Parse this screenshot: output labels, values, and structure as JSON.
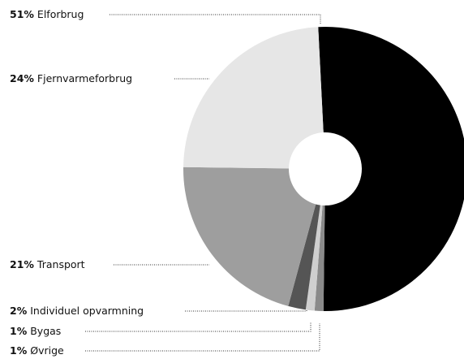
{
  "chart_data": {
    "type": "pie",
    "categories": [
      "Elforbrug",
      "Øvrige",
      "Bygas",
      "Individuel opvarmning",
      "Transport",
      "Fjernvarmeforbrug"
    ],
    "values": [
      51,
      1,
      1,
      2,
      21,
      24
    ],
    "value_labels": [
      "51%",
      "1%",
      "1%",
      "2%",
      "21%",
      "24%"
    ],
    "colors": [
      "#000000",
      "#8a8a8a",
      "#cfcfcf",
      "#555555",
      "#9e9e9e",
      "#e6e6e6"
    ]
  }
}
